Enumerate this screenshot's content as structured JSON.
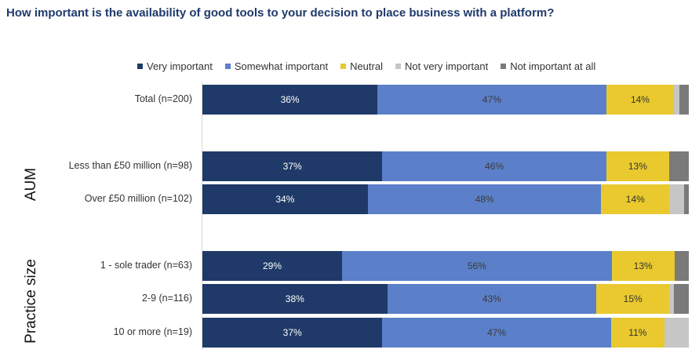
{
  "chart_data": {
    "type": "bar",
    "orientation": "horizontal",
    "stacked": true,
    "percent": true,
    "title": "How important is the availability of good tools to your decision to place business with a platform?",
    "legend_position": "top",
    "series": [
      {
        "name": "Very important",
        "color": "#1f3a68"
      },
      {
        "name": "Somewhat important",
        "color": "#5b80c9"
      },
      {
        "name": "Neutral",
        "color": "#e9c92e"
      },
      {
        "name": "Not very important",
        "color": "#c6c6c6"
      },
      {
        "name": "Not important at all",
        "color": "#7a7a7a"
      }
    ],
    "groups": [
      {
        "label": "",
        "rows": [
          {
            "category": "Total (n=200)",
            "values": [
              36,
              47,
              14,
              1,
              2
            ],
            "labels": [
              "36%",
              "47%",
              "14%",
              "",
              ""
            ]
          }
        ]
      },
      {
        "label": "AUM",
        "rows": [
          {
            "category": "Less than £50 million (n=98)",
            "values": [
              37,
              46,
              13,
              0,
              4
            ],
            "labels": [
              "37%",
              "46%",
              "13%",
              "",
              ""
            ]
          },
          {
            "category": "Over £50 million (n=102)",
            "values": [
              34,
              48,
              14,
              3,
              1
            ],
            "labels": [
              "34%",
              "48%",
              "14%",
              "",
              ""
            ]
          }
        ]
      },
      {
        "label": "Practice size",
        "rows": [
          {
            "category": "1 - sole trader (n=63)",
            "values": [
              29,
              56,
              13,
              0,
              3
            ],
            "labels": [
              "29%",
              "56%",
              "13%",
              "",
              ""
            ]
          },
          {
            "category": "2-9 (n=116)",
            "values": [
              38,
              43,
              15,
              1,
              3
            ],
            "labels": [
              "38%",
              "43%",
              "15%",
              "",
              ""
            ]
          },
          {
            "category": "10 or more (n=19)",
            "values": [
              37,
              47,
              11,
              5,
              0
            ],
            "labels": [
              "37%",
              "47%",
              "11%",
              "",
              ""
            ]
          }
        ]
      }
    ]
  }
}
